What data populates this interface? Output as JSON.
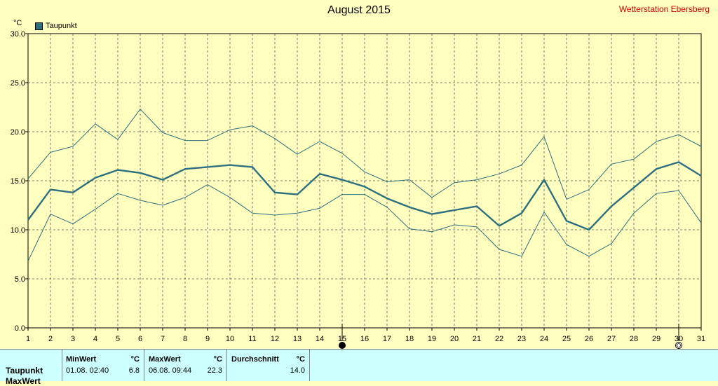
{
  "title": "August 2015",
  "station": "Wetterstation Ebersberg",
  "unit": "°C",
  "legend_label": "Taupunkt",
  "colors": {
    "background": "#ffffc0",
    "line": "#2e6f7e",
    "grid": "#555555",
    "panel": "#ccffff",
    "station": "#d00000"
  },
  "chart_data": {
    "type": "line",
    "x": [
      1,
      2,
      3,
      4,
      5,
      6,
      7,
      8,
      9,
      10,
      11,
      12,
      13,
      14,
      15,
      16,
      17,
      18,
      19,
      20,
      21,
      22,
      23,
      24,
      25,
      26,
      27,
      28,
      29,
      30,
      31
    ],
    "ylim": [
      0,
      30
    ],
    "yticks": [
      "0.0",
      "5.0",
      "10.0",
      "15.0",
      "20.0",
      "25.0",
      "30.0"
    ],
    "grid": true,
    "legend_position": "top-left",
    "series": [
      {
        "name": "Taupunkt",
        "values": [
          11.0,
          14.1,
          13.8,
          15.3,
          16.1,
          15.8,
          15.1,
          16.2,
          16.4,
          16.6,
          16.4,
          13.8,
          13.6,
          15.7,
          15.1,
          14.4,
          13.2,
          12.3,
          11.6,
          12.0,
          12.4,
          10.4,
          11.7,
          15.1,
          10.9,
          10.0,
          12.4,
          14.3,
          16.2,
          16.9,
          15.5
        ]
      },
      {
        "values": [
          15.2,
          17.9,
          18.5,
          20.8,
          19.2,
          22.3,
          19.9,
          19.1,
          19.1,
          20.2,
          20.6,
          19.3,
          17.7,
          19.0,
          17.8,
          15.9,
          14.9,
          15.1,
          13.3,
          14.8,
          15.1,
          15.7,
          16.6,
          19.5,
          13.1,
          14.1,
          16.7,
          17.2,
          19.0,
          19.7,
          18.5
        ]
      },
      {
        "values": [
          6.8,
          11.6,
          10.6,
          12.1,
          13.7,
          13.0,
          12.5,
          13.3,
          14.6,
          13.3,
          11.7,
          11.5,
          11.7,
          12.2,
          13.6,
          13.6,
          12.3,
          10.1,
          9.8,
          10.5,
          10.3,
          8.0,
          7.3,
          11.8,
          8.5,
          7.3,
          8.6,
          11.7,
          13.7,
          14.0,
          10.7
        ]
      }
    ],
    "markers": [
      {
        "x": 15,
        "symbol": "full-moon"
      },
      {
        "x": 30,
        "symbol": "new-moon"
      }
    ]
  },
  "stats": {
    "row_label": "Taupunkt",
    "row2_label": "MaxWert",
    "min": {
      "header": "MinWert",
      "unit": "°C",
      "time": "01.08.  02:40",
      "value": "6.8"
    },
    "max": {
      "header": "MaxWert",
      "unit": "°C",
      "time": "06.08.  09:44",
      "value": "22.3"
    },
    "avg": {
      "header": "Durchschnitt",
      "unit": "°C",
      "value": "14.0"
    }
  }
}
